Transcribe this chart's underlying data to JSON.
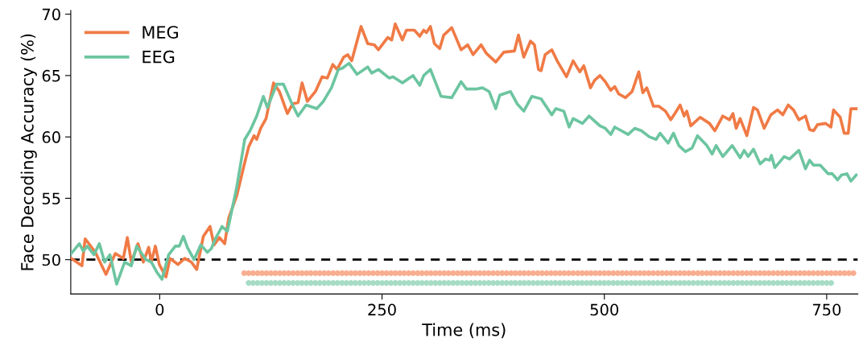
{
  "chart_data": {
    "type": "line",
    "xlabel": "Time (ms)",
    "ylabel": "Face Decoding Accuracy (%)",
    "xlim": [
      -100,
      785
    ],
    "xticks": [
      0,
      250,
      500,
      750
    ],
    "ylim": [
      47.2,
      70.3
    ],
    "yticks": [
      50,
      55,
      60,
      65,
      70
    ],
    "grid": false,
    "legend": "top left",
    "line_style": "solid",
    "marker": "none",
    "series": [
      {
        "name": "MEG",
        "color": "#f07a45",
        "x": [
          -99.4,
          -87.4,
          -83.8,
          -72.4,
          -60.4,
          -49.9,
          -40.9,
          -36.4,
          -31.9,
          -24.4,
          -18.4,
          -12.4,
          -9.4,
          -4.9,
          -0.4,
          7.1,
          11.6,
          20.6,
          28.1,
          35.6,
          41.6,
          49.1,
          56.6,
          61.1,
          67.1,
          73.1,
          77.6,
          86.6,
          95.6,
          100.1,
          106.1,
          109.1,
          113.6,
          119.6,
          128,
          134.6,
          143.6,
          149.6,
          155.6,
          160.1,
          166.1,
          175.1,
          182.6,
          188.6,
          194.6,
          199.4,
          206.9,
          211.4,
          215.9,
          220.4,
          226.4,
          233.9,
          241.4,
          245.9,
          256.4,
          260.9,
          264.8,
          272.9,
          277.4,
          286.4,
          292.4,
          296.9,
          299.9,
          304.4,
          308.9,
          314.9,
          319.4,
          328.4,
          338.9,
          346.4,
          352.4,
          361.4,
          367.4,
          377.9,
          386.9,
          398.9,
          403.4,
          409.4,
          416.9,
          421.4,
          425.9,
          428.9,
          433.4,
          440.9,
          446.9,
          457.4,
          464.9,
          472.4,
          476.9,
          484.4,
          488.9,
          495,
          501,
          507.2,
          511.7,
          516.2,
          523.7,
          531.2,
          538.7,
          543.2,
          547.7,
          555.2,
          561.2,
          568.7,
          574.7,
          579.2,
          585.2,
          589.7,
          592.7,
          597.2,
          607.7,
          618.2,
          624.2,
          633.2,
          640.7,
          644.6,
          648.2,
          652.7,
          660.2,
          667.7,
          672.2,
          679.7,
          687.2,
          694.7,
          700.7,
          706.7,
          712.7,
          718.7,
          726.2,
          730.7,
          735.2,
          739.7,
          748.7,
          754.7,
          757.7,
          765.2,
          769.7,
          774.2,
          777.2,
          783.2
        ],
        "values": [
          50.1,
          49.5,
          51.7,
          50.6,
          48.8,
          50.5,
          50.1,
          51.8,
          49.8,
          51.3,
          49.8,
          51.0,
          49.8,
          51.1,
          49.6,
          48.6,
          50.1,
          49.6,
          50.1,
          49.8,
          49.2,
          51.9,
          52.7,
          51.2,
          51.8,
          51.3,
          53.4,
          55.2,
          57.9,
          59.2,
          60.1,
          59.8,
          60.7,
          61.5,
          64.4,
          63.7,
          61.9,
          62.7,
          62.8,
          64.4,
          62.9,
          63.7,
          64.9,
          64.8,
          65.9,
          65.5,
          66.5,
          66.7,
          66.2,
          67.4,
          69.0,
          67.6,
          67.5,
          67.1,
          68.1,
          67.9,
          69.2,
          67.9,
          68.7,
          68.7,
          68.2,
          68.7,
          68.5,
          69.0,
          67.6,
          67.2,
          68.3,
          68.9,
          67.1,
          67.5,
          66.7,
          67.5,
          66.8,
          66.1,
          66.9,
          67.0,
          68.3,
          66.5,
          67.8,
          67.5,
          65.5,
          65.4,
          66.7,
          67.1,
          66.2,
          64.9,
          66.2,
          65.3,
          65.8,
          64.0,
          64.6,
          65.0,
          64.5,
          63.8,
          64.1,
          63.5,
          63.2,
          63.7,
          65.3,
          63.6,
          64.0,
          62.5,
          62.5,
          62.1,
          61.4,
          61.9,
          62.6,
          61.7,
          62.1,
          60.9,
          61.6,
          61.1,
          60.5,
          61.7,
          61.4,
          61.9,
          60.7,
          61.5,
          60.1,
          62.4,
          62.2,
          60.7,
          61.8,
          62.2,
          61.8,
          62.6,
          62.2,
          61.4,
          61.7,
          60.6,
          60.5,
          61.0,
          61.1,
          60.8,
          62.2,
          61.6,
          60.3,
          60.3,
          62.3,
          62.3
        ]
      },
      {
        "name": "EEG",
        "color": "#6cc5a0",
        "x": [
          -99.4,
          -90.4,
          -85.9,
          -81.4,
          -73.9,
          -67.9,
          -61.9,
          -55.9,
          -48.4,
          -39.4,
          -31.9,
          -25.9,
          -15.4,
          -9.4,
          -3.4,
          2.6,
          10.1,
          17.6,
          22.1,
          26.6,
          31.1,
          38.6,
          46.1,
          53.6,
          58.1,
          62.6,
          70.1,
          76.1,
          86.6,
          95.6,
          101.6,
          109.1,
          116.6,
          121.1,
          131.6,
          139.1,
          148.1,
          155.6,
          164.6,
          176.6,
          184.1,
          193.1,
          200.9,
          205.4,
          212.9,
          221.9,
          233.9,
          238.4,
          245.9,
          257.9,
          262.4,
          272.9,
          284.9,
          292.4,
          296.9,
          304.4,
          316.4,
          328.4,
          338.9,
          344.9,
          355.4,
          362.9,
          370.4,
          377.9,
          382.4,
          394.4,
          401.9,
          409.4,
          418.4,
          428.9,
          440.9,
          445.4,
          454.4,
          460.4,
          464.9,
          475.4,
          482.9,
          488.9,
          495,
          501,
          507.2,
          511.7,
          519.2,
          526.7,
          534.2,
          541.7,
          550.7,
          558.2,
          562.7,
          571.7,
          577.7,
          583.7,
          591.2,
          598.7,
          604.7,
          615.2,
          621.2,
          625.7,
          633.2,
          643.7,
          652.7,
          657.2,
          661.7,
          667.7,
          675.2,
          681.2,
          685.7,
          687.8,
          691.7,
          702.2,
          708.2,
          718.7,
          726.2,
          730.7,
          735.2,
          742.7,
          751.7,
          756.2,
          762.2,
          766.7,
          772.7,
          777.2,
          783.2
        ],
        "values": [
          50.5,
          51.3,
          50.7,
          51.1,
          50.4,
          51.3,
          49.8,
          50.4,
          48.0,
          49.8,
          49.5,
          51.1,
          50.0,
          49.8,
          49.0,
          48.4,
          50.4,
          51.1,
          51.1,
          51.9,
          51.0,
          50.0,
          51.2,
          50.6,
          50.9,
          51.7,
          52.7,
          52.3,
          55.9,
          59.8,
          60.5,
          61.7,
          63.3,
          62.4,
          64.3,
          64.3,
          62.8,
          61.7,
          62.6,
          62.3,
          62.9,
          64.0,
          65.5,
          65.6,
          66.0,
          65.1,
          65.7,
          65.2,
          65.5,
          64.8,
          64.9,
          64.4,
          65.0,
          64.2,
          65.0,
          65.5,
          63.3,
          63.2,
          64.5,
          63.9,
          63.9,
          64.0,
          63.7,
          62.3,
          63.4,
          63.7,
          62.7,
          62.1,
          63.3,
          63.1,
          61.8,
          62.3,
          62.1,
          60.8,
          61.5,
          61.1,
          61.7,
          61.3,
          60.9,
          60.7,
          60.2,
          60.8,
          60.5,
          60.2,
          60.7,
          60.5,
          60.0,
          59.8,
          60.3,
          59.5,
          60.3,
          59.3,
          58.8,
          59.1,
          60.1,
          59.3,
          58.6,
          59.3,
          58.4,
          59.3,
          58.3,
          58.9,
          58.4,
          59.0,
          57.8,
          58.2,
          58.1,
          58.5,
          57.5,
          58.4,
          58.2,
          58.9,
          57.4,
          58.1,
          57.7,
          57.7,
          57.0,
          57.0,
          56.5,
          56.9,
          57.0,
          56.4,
          56.9
        ]
      },
      {
        "type": "scatter",
        "marker": "circle",
        "color": "#f8ad8f",
        "x": [
          95,
          100,
          105,
          110,
          115,
          120,
          125,
          130,
          135,
          140,
          145,
          150,
          155,
          160,
          165,
          170,
          175,
          180,
          185,
          190,
          195,
          200,
          205,
          210,
          215,
          220,
          225,
          230,
          235,
          240,
          245,
          250,
          255,
          260,
          265,
          270,
          275,
          280,
          285,
          290,
          295,
          300,
          305,
          310,
          315,
          320,
          325,
          330,
          335,
          340,
          345,
          350,
          355,
          360,
          365,
          370,
          375,
          380,
          385,
          390,
          395,
          400,
          405,
          410,
          415,
          420,
          425,
          430,
          435,
          440,
          445,
          450,
          455,
          460,
          465,
          470,
          475,
          480,
          485,
          490,
          495,
          500,
          505,
          510,
          515,
          520,
          525,
          530,
          535,
          540,
          545,
          550,
          555,
          560,
          565,
          570,
          575,
          580,
          585,
          590,
          595,
          600,
          605,
          610,
          615,
          620,
          625,
          630,
          635,
          640,
          645,
          650,
          655,
          660,
          665,
          670,
          675,
          680,
          685,
          690,
          695,
          700,
          705,
          710,
          715,
          720,
          725,
          730,
          735,
          740,
          745,
          750,
          755,
          760,
          765,
          770,
          775,
          780
        ],
        "values": [
          48.9,
          48.9,
          48.9,
          48.9,
          48.9,
          48.9,
          48.9,
          48.9,
          48.9,
          48.9,
          48.9,
          48.9,
          48.9,
          48.9,
          48.9,
          48.9,
          48.9,
          48.9,
          48.9,
          48.9,
          48.9,
          48.9,
          48.9,
          48.9,
          48.9,
          48.9,
          48.9,
          48.9,
          48.9,
          48.9,
          48.9,
          48.9,
          48.9,
          48.9,
          48.9,
          48.9,
          48.9,
          48.9,
          48.9,
          48.9,
          48.9,
          48.9,
          48.9,
          48.9,
          48.9,
          48.9,
          48.9,
          48.9,
          48.9,
          48.9,
          48.9,
          48.9,
          48.9,
          48.9,
          48.9,
          48.9,
          48.9,
          48.9,
          48.9,
          48.9,
          48.9,
          48.9,
          48.9,
          48.9,
          48.9,
          48.9,
          48.9,
          48.9,
          48.9,
          48.9,
          48.9,
          48.9,
          48.9,
          48.9,
          48.9,
          48.9,
          48.9,
          48.9,
          48.9,
          48.9,
          48.9,
          48.9,
          48.9,
          48.9,
          48.9,
          48.9,
          48.9,
          48.9,
          48.9,
          48.9,
          48.9,
          48.9,
          48.9,
          48.9,
          48.9,
          48.9,
          48.9,
          48.9,
          48.9,
          48.9,
          48.9,
          48.9,
          48.9,
          48.9,
          48.9,
          48.9,
          48.9,
          48.9,
          48.9,
          48.9,
          48.9,
          48.9,
          48.9,
          48.9,
          48.9,
          48.9,
          48.9,
          48.9,
          48.9,
          48.9,
          48.9,
          48.9,
          48.9,
          48.9,
          48.9,
          48.9,
          48.9,
          48.9,
          48.9,
          48.9,
          48.9,
          48.9,
          48.9,
          48.9,
          48.9,
          48.9,
          48.9,
          48.9
        ]
      },
      {
        "type": "scatter",
        "marker": "circle",
        "color": "#a6dcc5",
        "x": [
          100,
          105,
          110,
          115,
          120,
          125,
          130,
          135,
          140,
          145,
          150,
          155,
          160,
          165,
          170,
          175,
          180,
          185,
          190,
          195,
          200,
          205,
          210,
          215,
          220,
          225,
          230,
          235,
          240,
          245,
          250,
          255,
          260,
          265,
          270,
          275,
          280,
          285,
          290,
          295,
          300,
          305,
          310,
          315,
          320,
          325,
          330,
          335,
          340,
          345,
          350,
          355,
          360,
          365,
          370,
          375,
          380,
          385,
          390,
          395,
          400,
          405,
          410,
          415,
          420,
          425,
          430,
          435,
          440,
          445,
          450,
          455,
          460,
          465,
          470,
          475,
          480,
          485,
          490,
          495,
          500,
          505,
          510,
          515,
          520,
          525,
          530,
          535,
          540,
          545,
          550,
          555,
          560,
          565,
          570,
          575,
          580,
          585,
          590,
          595,
          600,
          605,
          610,
          615,
          620,
          625,
          630,
          635,
          640,
          645,
          650,
          655,
          660,
          665,
          670,
          675,
          680,
          685,
          690,
          695,
          700,
          705,
          710,
          715,
          720,
          725,
          730,
          735,
          740,
          745,
          750,
          755
        ],
        "values": [
          48.1,
          48.1,
          48.1,
          48.1,
          48.1,
          48.1,
          48.1,
          48.1,
          48.1,
          48.1,
          48.1,
          48.1,
          48.1,
          48.1,
          48.1,
          48.1,
          48.1,
          48.1,
          48.1,
          48.1,
          48.1,
          48.1,
          48.1,
          48.1,
          48.1,
          48.1,
          48.1,
          48.1,
          48.1,
          48.1,
          48.1,
          48.1,
          48.1,
          48.1,
          48.1,
          48.1,
          48.1,
          48.1,
          48.1,
          48.1,
          48.1,
          48.1,
          48.1,
          48.1,
          48.1,
          48.1,
          48.1,
          48.1,
          48.1,
          48.1,
          48.1,
          48.1,
          48.1,
          48.1,
          48.1,
          48.1,
          48.1,
          48.1,
          48.1,
          48.1,
          48.1,
          48.1,
          48.1,
          48.1,
          48.1,
          48.1,
          48.1,
          48.1,
          48.1,
          48.1,
          48.1,
          48.1,
          48.1,
          48.1,
          48.1,
          48.1,
          48.1,
          48.1,
          48.1,
          48.1,
          48.1,
          48.1,
          48.1,
          48.1,
          48.1,
          48.1,
          48.1,
          48.1,
          48.1,
          48.1,
          48.1,
          48.1,
          48.1,
          48.1,
          48.1,
          48.1,
          48.1,
          48.1,
          48.1,
          48.1,
          48.1,
          48.1,
          48.1,
          48.1,
          48.1,
          48.1,
          48.1,
          48.1,
          48.1,
          48.1,
          48.1,
          48.1,
          48.1,
          48.1,
          48.1,
          48.1,
          48.1,
          48.1,
          48.1,
          48.1,
          48.1,
          48.1,
          48.1,
          48.1,
          48.1,
          48.1,
          48.1,
          48.1,
          48.1,
          48.1,
          48.1,
          48.1
        ]
      }
    ],
    "ref_lines": [
      {
        "axis": "y",
        "value": 50,
        "color": "#000000",
        "line_style": "dashed"
      }
    ]
  }
}
